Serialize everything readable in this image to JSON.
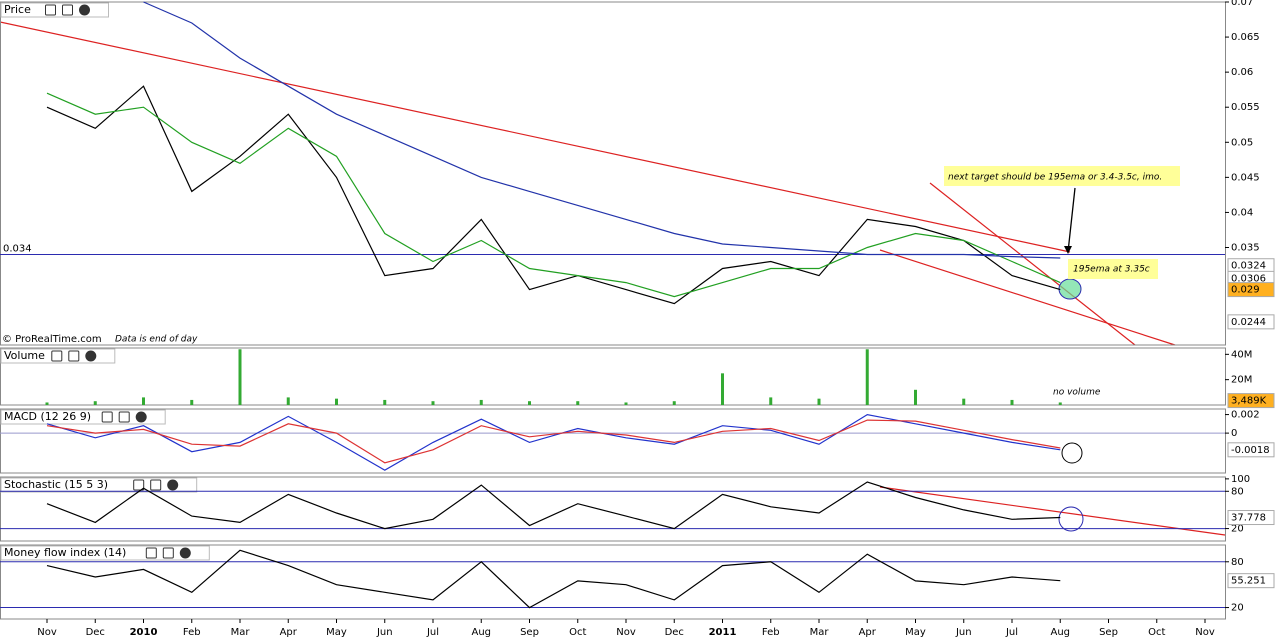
{
  "chart_data": [
    {
      "type": "line",
      "title": "Price",
      "ylim": [
        0.0211,
        0.07
      ],
      "yticks": [
        0.035,
        0.04,
        0.045,
        0.05,
        0.055,
        0.06,
        0.065,
        0.07
      ],
      "hlines": [
        {
          "value": 0.034,
          "color": "#2b2bb0"
        }
      ],
      "series": [
        {
          "color": "#000000",
          "values": [
            0.055,
            0.052,
            0.058,
            0.043,
            0.048,
            0.054,
            0.045,
            0.031,
            0.032,
            0.039,
            0.029,
            0.031,
            0.029,
            0.027,
            0.032,
            0.033,
            0.031,
            0.039,
            0.038,
            0.036,
            0.031,
            0.029,
            null,
            null,
            null
          ]
        },
        {
          "color": "#22a022",
          "values": [
            0.057,
            0.054,
            0.055,
            0.05,
            0.047,
            0.052,
            0.048,
            0.037,
            0.033,
            0.036,
            0.032,
            0.031,
            0.03,
            0.028,
            0.03,
            0.032,
            0.032,
            0.035,
            0.037,
            0.036,
            0.033,
            0.03,
            null,
            null,
            null
          ]
        },
        {
          "color": "#2233aa",
          "values": [
            null,
            null,
            0.07,
            0.067,
            0.062,
            0.058,
            0.054,
            0.051,
            0.048,
            0.045,
            0.043,
            0.041,
            0.039,
            0.037,
            0.0355,
            0.035,
            0.0345,
            0.034,
            0.034,
            0.034,
            0.0337,
            0.0335,
            null,
            null,
            null
          ]
        }
      ],
      "markers": [
        {
          "value": 0.0324,
          "color": "#888888"
        },
        {
          "value": 0.0306,
          "color": "#888888"
        },
        {
          "value": 0.029,
          "color": "#000000",
          "background": "#ffb020"
        },
        {
          "value": 0.0244,
          "color": "#888888"
        }
      ],
      "watermark": "© ProRealTime.com",
      "note": "Data is end of day",
      "annotations": [
        "next target should be 195ema or 3.4-3.5c, imo.",
        "195ema at 3.35c"
      ]
    },
    {
      "type": "bar",
      "title": "Volume",
      "ylim": [
        0,
        45
      ],
      "yticks": [
        {
          "value": 20,
          "label": "20M"
        },
        {
          "value": 40,
          "label": "40M"
        }
      ],
      "series": [
        {
          "color": "#33aa33",
          "values": [
            2,
            3,
            6,
            4,
            44,
            6,
            5,
            4,
            3,
            4,
            3,
            3,
            2,
            3,
            25,
            6,
            5,
            44,
            12,
            5,
            4,
            2,
            null,
            null,
            null
          ]
        }
      ],
      "markers": [
        {
          "value": 3.489,
          "label": "3,489K",
          "color": "#000000",
          "background": "#ffb020"
        }
      ],
      "annotations": [
        "no volume"
      ]
    },
    {
      "type": "line",
      "title": "MACD (12 26 9)",
      "ylim": [
        -0.0043,
        0.0026
      ],
      "yticks": [
        0,
        0.002
      ],
      "hlines": [
        {
          "value": 0,
          "color": "#9999cc"
        }
      ],
      "series": [
        {
          "color": "#2233cc",
          "values": [
            0.001,
            -0.0005,
            0.0008,
            -0.002,
            -0.001,
            0.0018,
            -0.001,
            -0.004,
            -0.001,
            0.0015,
            -0.001,
            0.0005,
            -0.0005,
            -0.0012,
            0.0008,
            0.0003,
            -0.0012,
            0.002,
            0.001,
            0,
            -0.001,
            -0.0018,
            null,
            null,
            null
          ]
        },
        {
          "color": "#dd3333",
          "values": [
            0.0008,
            0,
            0.0004,
            -0.0012,
            -0.0014,
            0.001,
            0,
            -0.0032,
            -0.0018,
            0.0008,
            -0.0004,
            0.0002,
            -0.0002,
            -0.001,
            0.0002,
            0.0005,
            -0.0008,
            0.0014,
            0.0013,
            0.0003,
            -0.0007,
            -0.0016,
            null,
            null,
            null
          ]
        }
      ],
      "markers": [
        {
          "value": -0.0018,
          "color": "#cc2222"
        }
      ]
    },
    {
      "type": "line",
      "title": "Stochastic (15 5 3)",
      "ylim": [
        0,
        103
      ],
      "yticks": [
        20,
        80,
        100
      ],
      "hlines": [
        {
          "value": 80,
          "color": "#2b2bb0"
        },
        {
          "value": 20,
          "color": "#2b2bb0"
        }
      ],
      "series": [
        {
          "color": "#000000",
          "values": [
            60,
            30,
            85,
            40,
            30,
            75,
            45,
            20,
            35,
            90,
            25,
            60,
            40,
            20,
            75,
            55,
            45,
            95,
            70,
            50,
            35,
            37.778,
            null,
            null,
            null
          ]
        }
      ],
      "markers": [
        {
          "value": 37.778,
          "color": "#000000"
        }
      ]
    },
    {
      "type": "line",
      "title": "Money flow index (14)",
      "ylim": [
        5,
        102
      ],
      "yticks": [
        20,
        80
      ],
      "hlines": [
        {
          "value": 80,
          "color": "#2b2bb0"
        },
        {
          "value": 20,
          "color": "#2b2bb0"
        }
      ],
      "series": [
        {
          "color": "#000000",
          "values": [
            75,
            60,
            70,
            40,
            95,
            75,
            50,
            40,
            30,
            80,
            20,
            55,
            50,
            30,
            75,
            80,
            40,
            90,
            55,
            50,
            60,
            55.251,
            null,
            null,
            null
          ]
        }
      ],
      "markers": [
        {
          "value": 55.251,
          "color": "#000000"
        }
      ]
    }
  ],
  "x_axis": {
    "categories": [
      "Nov",
      "Dec",
      "2010",
      "Feb",
      "Mar",
      "Apr",
      "May",
      "Jun",
      "Jul",
      "Aug",
      "Sep",
      "Oct",
      "Nov",
      "Dec",
      "2011",
      "Feb",
      "Mar",
      "Apr",
      "May",
      "Jun",
      "Jul",
      "Aug",
      "Sep",
      "Oct",
      "Nov"
    ]
  }
}
